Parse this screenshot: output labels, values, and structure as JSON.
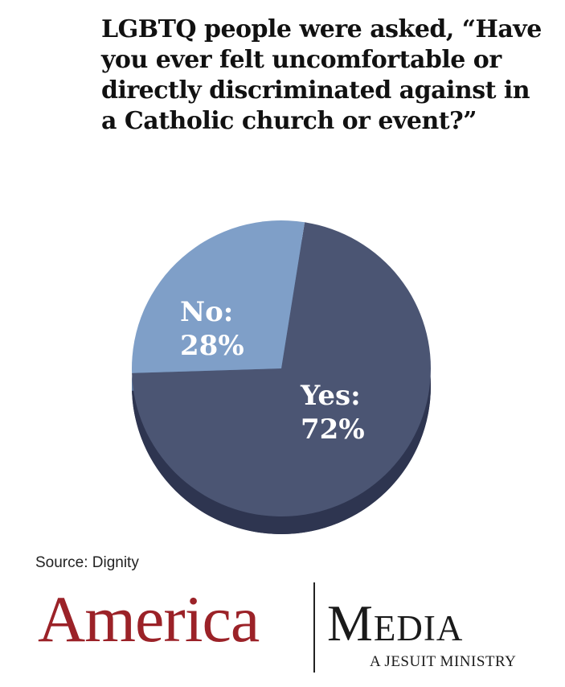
{
  "title": "LGBTQ people were asked, “Have you ever felt uncomfortable or directly discriminated against in a Catholic church or event?”",
  "source": "Source: Dignity",
  "brand": {
    "name": "America",
    "media": "Media",
    "tagline": "A JESUIT MINISTRY"
  },
  "colors": {
    "yes": "#4b5573",
    "yes_shadow": "#2e3550",
    "no": "#7f9fc8",
    "no_shadow": "#5f7aa0",
    "brand_red": "#9b2228"
  },
  "chart_data": {
    "type": "pie",
    "title": "LGBTQ people were asked, “Have you ever felt uncomfortable or directly discriminated against in a Catholic church or event?”",
    "categories": [
      "Yes",
      "No"
    ],
    "values": [
      72,
      28
    ],
    "labels": [
      {
        "name": "Yes:",
        "value": "72%"
      },
      {
        "name": "No:",
        "value": "28%"
      }
    ],
    "legend": "none",
    "style": "3d-tilted"
  }
}
